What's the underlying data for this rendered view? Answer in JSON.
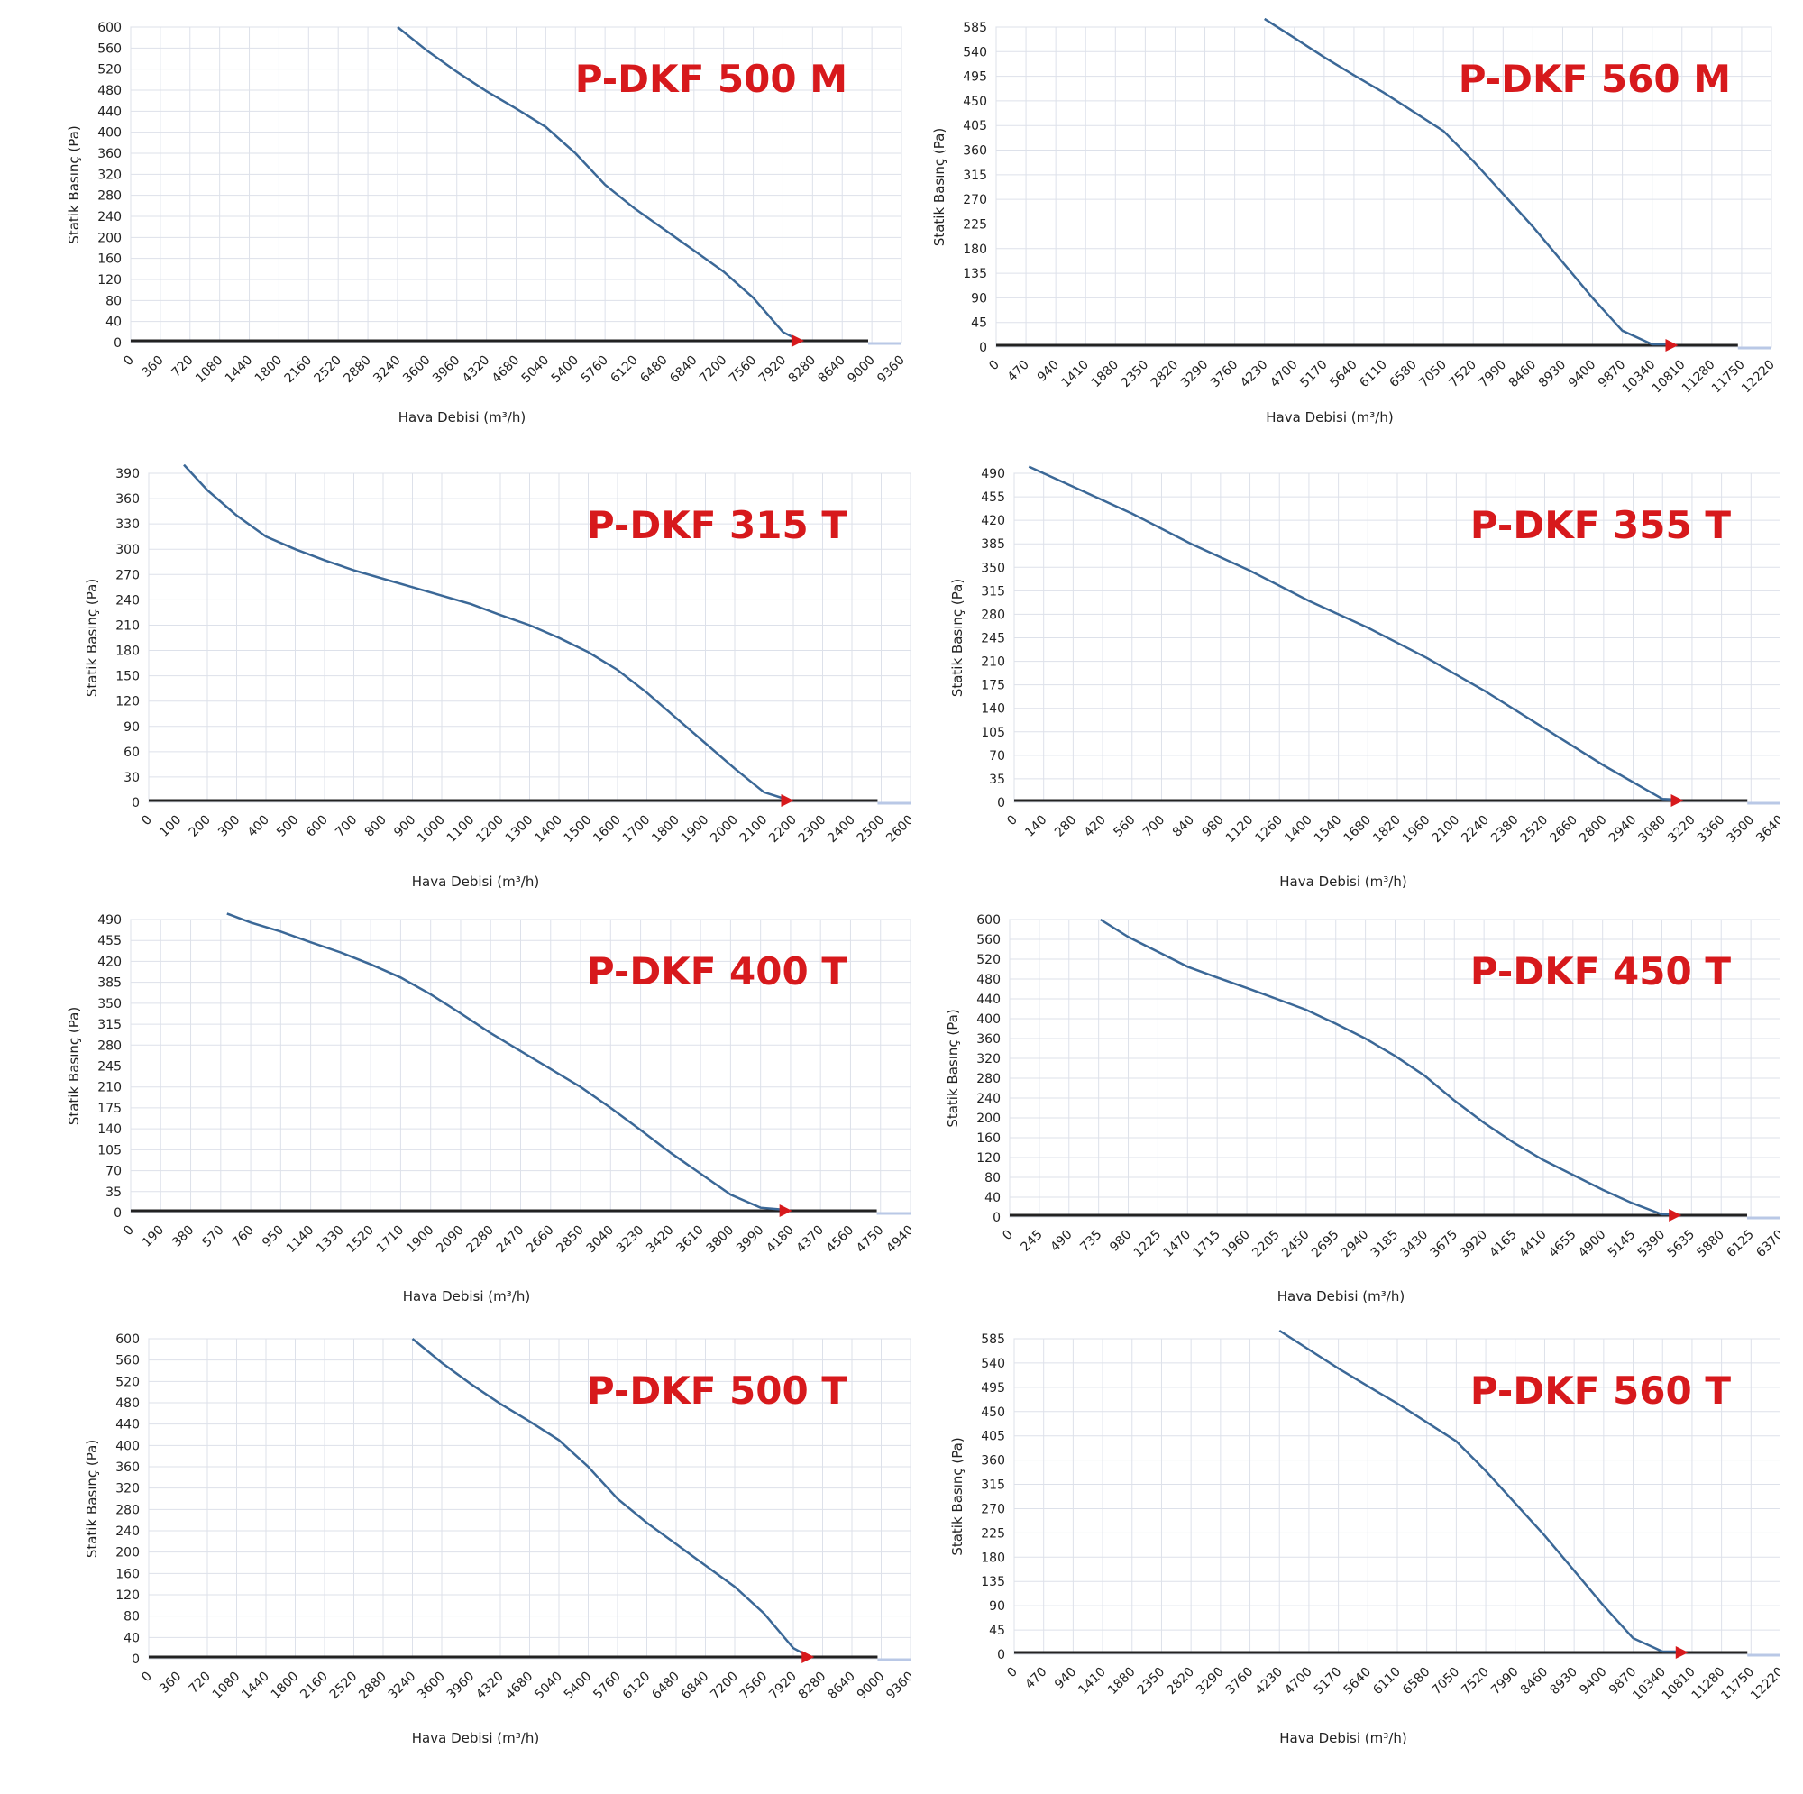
{
  "chart_data": [
    {
      "type": "line",
      "title": "P-DKF 500 M",
      "xlabel": "Hava Debisi (m³/h)",
      "ylabel": "Statik Basınç (Pa)",
      "x_ticks": [
        0,
        360,
        720,
        1080,
        1440,
        1800,
        2160,
        2520,
        2880,
        3240,
        3600,
        3960,
        4320,
        4680,
        5040,
        5400,
        5760,
        6120,
        6480,
        6840,
        7200,
        7560,
        7920,
        8280,
        8640,
        9000,
        9360
      ],
      "y_ticks": [
        0,
        40,
        80,
        120,
        160,
        200,
        240,
        280,
        320,
        360,
        400,
        440,
        480,
        520,
        560,
        600
      ],
      "xlim": [
        0,
        9360
      ],
      "ylim": [
        0,
        600
      ],
      "grid": true,
      "line_color": "#3b6897",
      "marker_color": "#d7191c",
      "series": [
        {
          "x": [
            3240,
            3600,
            3960,
            4320,
            4680,
            5040,
            5400,
            5760,
            6120,
            6480,
            6840,
            7200,
            7560,
            7920,
            8100
          ],
          "y": [
            600,
            555,
            515,
            478,
            445,
            410,
            360,
            300,
            255,
            215,
            175,
            135,
            85,
            20,
            0
          ]
        }
      ],
      "operating_point": {
        "x": 8100,
        "y": 0
      }
    },
    {
      "type": "line",
      "title": "P-DKF 560 M",
      "xlabel": "Hava Debisi (m³/h)",
      "ylabel": "Statik Basınç (Pa)",
      "x_ticks": [
        0,
        470,
        940,
        1410,
        1880,
        2350,
        2820,
        3290,
        3760,
        4230,
        4700,
        5170,
        5640,
        6110,
        6580,
        7050,
        7520,
        7990,
        8460,
        8930,
        9400,
        9870,
        10340,
        10810,
        11280,
        11750,
        12220
      ],
      "y_ticks": [
        0,
        45,
        90,
        135,
        180,
        225,
        270,
        315,
        360,
        405,
        450,
        495,
        540,
        585
      ],
      "xlim": [
        0,
        12220
      ],
      "ylim": [
        0,
        585
      ],
      "grid": true,
      "line_color": "#3b6897",
      "marker_color": "#d7191c",
      "series": [
        {
          "x": [
            4230,
            4700,
            5170,
            5640,
            6110,
            6580,
            7050,
            7520,
            7990,
            8460,
            8930,
            9400,
            9870,
            10340,
            10650
          ],
          "y": [
            600,
            565,
            530,
            497,
            465,
            430,
            395,
            340,
            280,
            220,
            155,
            90,
            30,
            0,
            0
          ]
        }
      ],
      "operating_point": {
        "x": 10650,
        "y": 0
      }
    },
    {
      "type": "line",
      "title": "P-DKF 315 T",
      "xlabel": "Hava Debisi (m³/h)",
      "ylabel": "Statik Basınç (Pa)",
      "x_ticks": [
        0,
        100,
        200,
        300,
        400,
        500,
        600,
        700,
        800,
        900,
        1000,
        1100,
        1200,
        1300,
        1400,
        1500,
        1600,
        1700,
        1800,
        1900,
        2000,
        2100,
        2200,
        2300,
        2400,
        2500,
        2600
      ],
      "y_ticks": [
        0,
        30,
        60,
        90,
        120,
        150,
        180,
        210,
        240,
        270,
        300,
        330,
        360,
        390
      ],
      "xlim": [
        0,
        2600
      ],
      "ylim": [
        0,
        390
      ],
      "grid": true,
      "line_color": "#3b6897",
      "marker_color": "#d7191c",
      "series": [
        {
          "x": [
            120,
            200,
            300,
            400,
            500,
            600,
            700,
            800,
            900,
            1000,
            1100,
            1200,
            1300,
            1400,
            1500,
            1600,
            1700,
            1800,
            1900,
            2000,
            2100,
            2180
          ],
          "y": [
            400,
            370,
            340,
            315,
            300,
            287,
            275,
            265,
            255,
            245,
            235,
            222,
            210,
            195,
            178,
            157,
            130,
            100,
            70,
            40,
            12,
            0
          ]
        }
      ],
      "operating_point": {
        "x": 2180,
        "y": 0
      }
    },
    {
      "type": "line",
      "title": "P-DKF 355 T",
      "xlabel": "Hava Debisi (m³/h)",
      "ylabel": "Statik Basınç (Pa)",
      "x_ticks": [
        0,
        140,
        280,
        420,
        560,
        700,
        840,
        980,
        1120,
        1260,
        1400,
        1540,
        1680,
        1820,
        1960,
        2100,
        2240,
        2380,
        2520,
        2660,
        2800,
        2940,
        3080,
        3220,
        3360,
        3500,
        3640
      ],
      "y_ticks": [
        0,
        35,
        70,
        105,
        140,
        175,
        210,
        245,
        280,
        315,
        350,
        385,
        420,
        455,
        490
      ],
      "xlim": [
        0,
        3640
      ],
      "ylim": [
        0,
        490
      ],
      "grid": true,
      "line_color": "#3b6897",
      "marker_color": "#d7191c",
      "series": [
        {
          "x": [
            70,
            280,
            560,
            840,
            1120,
            1400,
            1680,
            1960,
            2240,
            2520,
            2800,
            3080,
            3150
          ],
          "y": [
            500,
            470,
            430,
            385,
            345,
            300,
            260,
            215,
            165,
            110,
            55,
            5,
            0
          ]
        }
      ],
      "operating_point": {
        "x": 3150,
        "y": 0
      }
    },
    {
      "type": "line",
      "title": "P-DKF 400 T",
      "xlabel": "Hava Debisi (m³/h)",
      "ylabel": "Statik Basınç (Pa)",
      "x_ticks": [
        0,
        190,
        380,
        570,
        760,
        950,
        1140,
        1330,
        1520,
        1710,
        1900,
        2090,
        2280,
        2470,
        2660,
        2850,
        3040,
        3230,
        3420,
        3610,
        3800,
        3990,
        4180,
        4370,
        4560,
        4750,
        4940
      ],
      "y_ticks": [
        0,
        35,
        70,
        105,
        140,
        175,
        210,
        245,
        280,
        315,
        350,
        385,
        420,
        455,
        490
      ],
      "xlim": [
        0,
        4940
      ],
      "ylim": [
        0,
        490
      ],
      "grid": true,
      "line_color": "#3b6897",
      "marker_color": "#d7191c",
      "series": [
        {
          "x": [
            610,
            760,
            950,
            1140,
            1330,
            1520,
            1710,
            1900,
            2090,
            2280,
            2470,
            2660,
            2850,
            3040,
            3230,
            3420,
            3610,
            3800,
            3990,
            4150
          ],
          "y": [
            500,
            485,
            470,
            452,
            435,
            415,
            393,
            365,
            333,
            300,
            270,
            240,
            210,
            175,
            138,
            100,
            65,
            30,
            8,
            0
          ]
        }
      ],
      "operating_point": {
        "x": 4150,
        "y": 0
      }
    },
    {
      "type": "line",
      "title": "P-DKF 450 T",
      "xlabel": "Hava Debisi (m³/h)",
      "ylabel": "Statik Basınç (Pa)",
      "x_ticks": [
        0,
        245,
        490,
        735,
        980,
        1225,
        1470,
        1715,
        1960,
        2205,
        2450,
        2695,
        2940,
        3185,
        3430,
        3675,
        3920,
        4165,
        4410,
        4655,
        4900,
        5145,
        5390,
        5635,
        5880,
        6125,
        6370
      ],
      "y_ticks": [
        0,
        40,
        80,
        120,
        160,
        200,
        240,
        280,
        320,
        360,
        400,
        440,
        480,
        520,
        560,
        600
      ],
      "xlim": [
        0,
        6370
      ],
      "ylim": [
        0,
        600
      ],
      "grid": true,
      "line_color": "#3b6897",
      "marker_color": "#d7191c",
      "series": [
        {
          "x": [
            750,
            980,
            1225,
            1470,
            1715,
            1960,
            2205,
            2450,
            2695,
            2940,
            3185,
            3430,
            3675,
            3920,
            4165,
            4410,
            4655,
            4900,
            5145,
            5390,
            5500
          ],
          "y": [
            600,
            565,
            535,
            505,
            483,
            462,
            440,
            418,
            390,
            360,
            325,
            285,
            235,
            190,
            150,
            115,
            85,
            55,
            28,
            5,
            0
          ]
        }
      ],
      "operating_point": {
        "x": 5500,
        "y": 0
      }
    },
    {
      "type": "line",
      "title": "P-DKF 500 T",
      "xlabel": "Hava Debisi (m³/h)",
      "ylabel": "Statik Basınç (Pa)",
      "x_ticks": [
        0,
        360,
        720,
        1080,
        1440,
        1800,
        2160,
        2520,
        2880,
        3240,
        3600,
        3960,
        4320,
        4680,
        5040,
        5400,
        5760,
        6120,
        6480,
        6840,
        7200,
        7560,
        7920,
        8280,
        8640,
        9000,
        9360
      ],
      "y_ticks": [
        0,
        40,
        80,
        120,
        160,
        200,
        240,
        280,
        320,
        360,
        400,
        440,
        480,
        520,
        560,
        600
      ],
      "xlim": [
        0,
        9360
      ],
      "ylim": [
        0,
        600
      ],
      "grid": true,
      "line_color": "#3b6897",
      "marker_color": "#d7191c",
      "series": [
        {
          "x": [
            3240,
            3600,
            3960,
            4320,
            4680,
            5040,
            5400,
            5760,
            6120,
            6480,
            6840,
            7200,
            7560,
            7920,
            8100
          ],
          "y": [
            600,
            555,
            515,
            478,
            445,
            410,
            360,
            300,
            255,
            215,
            175,
            135,
            85,
            20,
            0
          ]
        }
      ],
      "operating_point": {
        "x": 8100,
        "y": 0
      }
    },
    {
      "type": "line",
      "title": "P-DKF 560 T",
      "xlabel": "Hava Debisi (m³/h)",
      "ylabel": "Statik Basınç (Pa)",
      "x_ticks": [
        0,
        470,
        940,
        1410,
        1880,
        2350,
        2820,
        3290,
        3760,
        4230,
        4700,
        5170,
        5640,
        6110,
        6580,
        7050,
        7520,
        7990,
        8460,
        8930,
        9400,
        9870,
        10340,
        10810,
        11280,
        11750,
        12220
      ],
      "y_ticks": [
        0,
        45,
        90,
        135,
        180,
        225,
        270,
        315,
        360,
        405,
        450,
        495,
        540,
        585
      ],
      "xlim": [
        0,
        12220
      ],
      "ylim": [
        0,
        585
      ],
      "grid": true,
      "line_color": "#3b6897",
      "marker_color": "#d7191c",
      "series": [
        {
          "x": [
            4230,
            4700,
            5170,
            5640,
            6110,
            6580,
            7050,
            7520,
            7990,
            8460,
            8930,
            9400,
            9870,
            10340,
            10650
          ],
          "y": [
            600,
            565,
            530,
            497,
            465,
            430,
            395,
            340,
            280,
            220,
            155,
            90,
            30,
            0,
            0
          ]
        }
      ],
      "operating_point": {
        "x": 10650,
        "y": 0
      }
    }
  ]
}
